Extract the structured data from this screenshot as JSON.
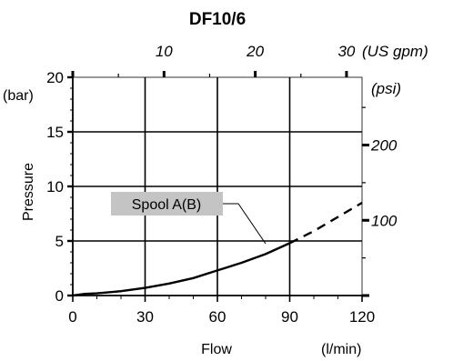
{
  "chart_data": {
    "type": "line",
    "title": "DF10/6",
    "xlabel": "Flow",
    "xunit": "(l/min)",
    "ylabel": "Pressure",
    "yunit": "(bar)",
    "xlim": [
      0,
      120
    ],
    "ylim": [
      0,
      20
    ],
    "x_ticks": [
      "0",
      "30",
      "60",
      "90",
      "120"
    ],
    "y_ticks": [
      "0",
      "5",
      "10",
      "15",
      "20"
    ],
    "top_axis": {
      "unit": "(US gpm)",
      "ticks": [
        {
          "value": 10,
          "label": "10"
        },
        {
          "value": 20,
          "label": "20"
        },
        {
          "value": 30,
          "label": "30"
        }
      ]
    },
    "right_axis": {
      "unit": "(psi)",
      "ticks": [
        {
          "value": 100,
          "label": "100"
        },
        {
          "value": 200,
          "label": "200"
        }
      ]
    },
    "grid": true,
    "series": [
      {
        "name": "Spool A(B)",
        "solid_until": 90,
        "x": [
          0,
          5,
          10,
          20,
          30,
          40,
          50,
          60,
          70,
          80,
          90,
          100,
          110,
          120
        ],
        "y": [
          0,
          0.15,
          0.2,
          0.4,
          0.7,
          1.1,
          1.6,
          2.3,
          3.0,
          3.8,
          4.8,
          5.9,
          7.2,
          8.5
        ]
      }
    ]
  }
}
